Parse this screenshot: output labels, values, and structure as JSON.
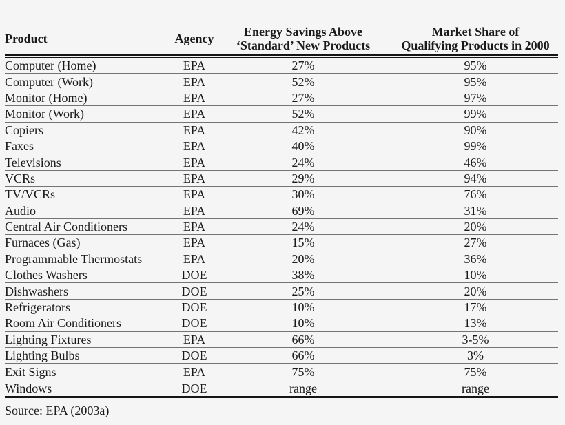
{
  "page": {
    "background": "#f5f5f5",
    "text_color": "#1a1a1a",
    "heavy_rule_color": "#151515",
    "row_line_color": "#747474"
  },
  "table": {
    "columns": [
      {
        "id": "product",
        "label_lines": [
          "Product"
        ]
      },
      {
        "id": "agency",
        "label_lines": [
          "Agency"
        ]
      },
      {
        "id": "savings",
        "label_lines": [
          "Energy Savings Above",
          "‘Standard’ New Products"
        ]
      },
      {
        "id": "share",
        "label_lines": [
          "Market Share of",
          "Qualifying Products in 2000"
        ]
      }
    ],
    "rows": [
      {
        "product": "Computer (Home)",
        "agency": "EPA",
        "savings": "27%",
        "share": "95%"
      },
      {
        "product": "Computer (Work)",
        "agency": "EPA",
        "savings": "52%",
        "share": "95%"
      },
      {
        "product": "Monitor (Home)",
        "agency": "EPA",
        "savings": "27%",
        "share": "97%"
      },
      {
        "product": "Monitor (Work)",
        "agency": "EPA",
        "savings": "52%",
        "share": "99%"
      },
      {
        "product": "Copiers",
        "agency": "EPA",
        "savings": "42%",
        "share": "90%"
      },
      {
        "product": "Faxes",
        "agency": "EPA",
        "savings": "40%",
        "share": "99%"
      },
      {
        "product": "Televisions",
        "agency": "EPA",
        "savings": "24%",
        "share": "46%"
      },
      {
        "product": "VCRs",
        "agency": "EPA",
        "savings": "29%",
        "share": "94%"
      },
      {
        "product": "TV/VCRs",
        "agency": "EPA",
        "savings": "30%",
        "share": "76%"
      },
      {
        "product": "Audio",
        "agency": "EPA",
        "savings": "69%",
        "share": "31%"
      },
      {
        "product": "Central Air Conditioners",
        "agency": "EPA",
        "savings": "24%",
        "share": "20%"
      },
      {
        "product": "Furnaces (Gas)",
        "agency": "EPA",
        "savings": "15%",
        "share": "27%"
      },
      {
        "product": "Programmable Thermostats",
        "agency": "EPA",
        "savings": "20%",
        "share": "36%"
      },
      {
        "product": "Clothes Washers",
        "agency": "DOE",
        "savings": "38%",
        "share": "10%"
      },
      {
        "product": "Dishwashers",
        "agency": "DOE",
        "savings": "25%",
        "share": "20%"
      },
      {
        "product": "Refrigerators",
        "agency": "DOE",
        "savings": "10%",
        "share": "17%"
      },
      {
        "product": "Room Air Conditioners",
        "agency": "DOE",
        "savings": "10%",
        "share": "13%"
      },
      {
        "product": "Lighting Fixtures",
        "agency": "EPA",
        "savings": "66%",
        "share": "3-5%"
      },
      {
        "product": "Lighting Bulbs",
        "agency": "DOE",
        "savings": "66%",
        "share": "3%"
      },
      {
        "product": "Exit Signs",
        "agency": "EPA",
        "savings": "75%",
        "share": "75%"
      },
      {
        "product": "Windows",
        "agency": "DOE",
        "savings": "range",
        "share": "range"
      }
    ],
    "source_note": "Source: EPA (2003a)"
  },
  "chart_data": {
    "type": "table",
    "title": "",
    "columns": [
      "Product",
      "Agency",
      "Energy Savings Above ‘Standard’ New Products",
      "Market Share of Qualifying Products in 2000"
    ],
    "rows": [
      [
        "Computer (Home)",
        "EPA",
        "27%",
        "95%"
      ],
      [
        "Computer (Work)",
        "EPA",
        "52%",
        "95%"
      ],
      [
        "Monitor (Home)",
        "EPA",
        "27%",
        "97%"
      ],
      [
        "Monitor (Work)",
        "EPA",
        "52%",
        "99%"
      ],
      [
        "Copiers",
        "EPA",
        "42%",
        "90%"
      ],
      [
        "Faxes",
        "EPA",
        "40%",
        "99%"
      ],
      [
        "Televisions",
        "EPA",
        "24%",
        "46%"
      ],
      [
        "VCRs",
        "EPA",
        "29%",
        "94%"
      ],
      [
        "TV/VCRs",
        "EPA",
        "30%",
        "76%"
      ],
      [
        "Audio",
        "EPA",
        "69%",
        "31%"
      ],
      [
        "Central Air Conditioners",
        "EPA",
        "24%",
        "20%"
      ],
      [
        "Furnaces (Gas)",
        "EPA",
        "15%",
        "27%"
      ],
      [
        "Programmable Thermostats",
        "EPA",
        "20%",
        "36%"
      ],
      [
        "Clothes Washers",
        "DOE",
        "38%",
        "10%"
      ],
      [
        "Dishwashers",
        "DOE",
        "25%",
        "20%"
      ],
      [
        "Refrigerators",
        "DOE",
        "10%",
        "17%"
      ],
      [
        "Room Air Conditioners",
        "DOE",
        "10%",
        "13%"
      ],
      [
        "Lighting Fixtures",
        "EPA",
        "66%",
        "3-5%"
      ],
      [
        "Lighting Bulbs",
        "DOE",
        "66%",
        "3%"
      ],
      [
        "Exit Signs",
        "EPA",
        "75%",
        "75%"
      ],
      [
        "Windows",
        "DOE",
        "range",
        "range"
      ]
    ],
    "footnote": "Source: EPA (2003a)"
  }
}
